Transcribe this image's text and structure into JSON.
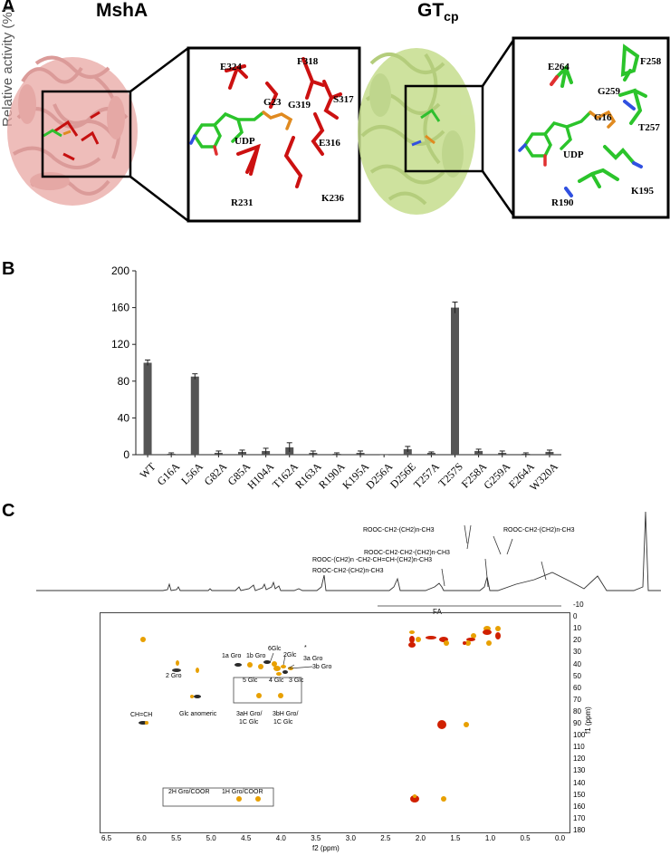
{
  "panel_a": {
    "letter": "A",
    "ghost_label": "Relative activity (%)",
    "left_title": "MshA",
    "right_title": "GT",
    "right_title_sub": "cp",
    "msha_residues": [
      "E324",
      "F318",
      "G23",
      "G319",
      "S317",
      "UDP",
      "E316",
      "R231",
      "K236"
    ],
    "gtcp_residues": [
      "E264",
      "F258",
      "G259",
      "G16",
      "T257",
      "UDP",
      "R190",
      "K195"
    ]
  },
  "panel_b": {
    "letter": "B"
  },
  "chart_data": {
    "type": "bar",
    "categories": [
      "WT",
      "G16A",
      "L56A",
      "G82A",
      "G85A",
      "H104A",
      "T162A",
      "R163A",
      "R190A",
      "K195A",
      "D256A",
      "D256E",
      "T257A",
      "T257S",
      "F258A",
      "G259A",
      "E264A",
      "W320A"
    ],
    "values": [
      100,
      1,
      85,
      2,
      3,
      4,
      8,
      2,
      1,
      2,
      0,
      6,
      2,
      160,
      4,
      2,
      1,
      3
    ],
    "errors": [
      3,
      1,
      3,
      2,
      2,
      3,
      5,
      2,
      1,
      2,
      0,
      3,
      1,
      6,
      2,
      2,
      1,
      2
    ],
    "ylim": [
      0,
      200
    ],
    "yticks": [
      0,
      40,
      80,
      120,
      160,
      200
    ],
    "title": "",
    "xlabel": "",
    "ylabel": ""
  },
  "panel_c": {
    "letter": "C",
    "annotations": {
      "ch3": "ROOC-CH2-(CH2)n-CH3",
      "ch2_chain": "ROOC-CH2-(CH2)n-CH3",
      "beta": "ROOC-CH2-CH2-(CH2)n-CH3",
      "allylic": "ROOC-(CH2)n -CH2-CH=CH-(CH2)n-CH3",
      "alpha": "ROOC-CH2-(CH2)n-CH3",
      "fa": "FA"
    },
    "labels": {
      "gro1a": "1a Gro",
      "gro1b": "1b Gro",
      "glc6": "6Glc",
      "glc2": "2Glc",
      "gro3a": "3a Gro",
      "gro3b": "3b Gro",
      "star": "*",
      "gro2": "2 Gro",
      "glc5": "5 Glc",
      "glc4": "4 Glc",
      "glc3": "3 Glc",
      "anomeric": "Glc anomeric",
      "box1_line1": "3aH Gro/",
      "box1_line2": "1C Glc",
      "box2_line1": "3bH Gro/",
      "box2_line2": "1C Glc",
      "chch": "CH=CH",
      "coor2": "2H Gro/COOR",
      "coor1": "1H Gro/COOR"
    },
    "f2_ticks": [
      "6.5",
      "6.0",
      "5.5",
      "5.0",
      "4.5",
      "4.0",
      "3.5",
      "3.0",
      "2.5",
      "2.0",
      "1.5",
      "1.0",
      "0.5",
      "0.0"
    ],
    "f1_ticks": [
      "-10",
      "0",
      "10",
      "20",
      "30",
      "40",
      "50",
      "60",
      "70",
      "80",
      "90",
      "100",
      "110",
      "120",
      "130",
      "140",
      "150",
      "160",
      "170",
      "180"
    ],
    "f2_label": "f2 (ppm)",
    "f1_label": "f1 (ppm)"
  }
}
